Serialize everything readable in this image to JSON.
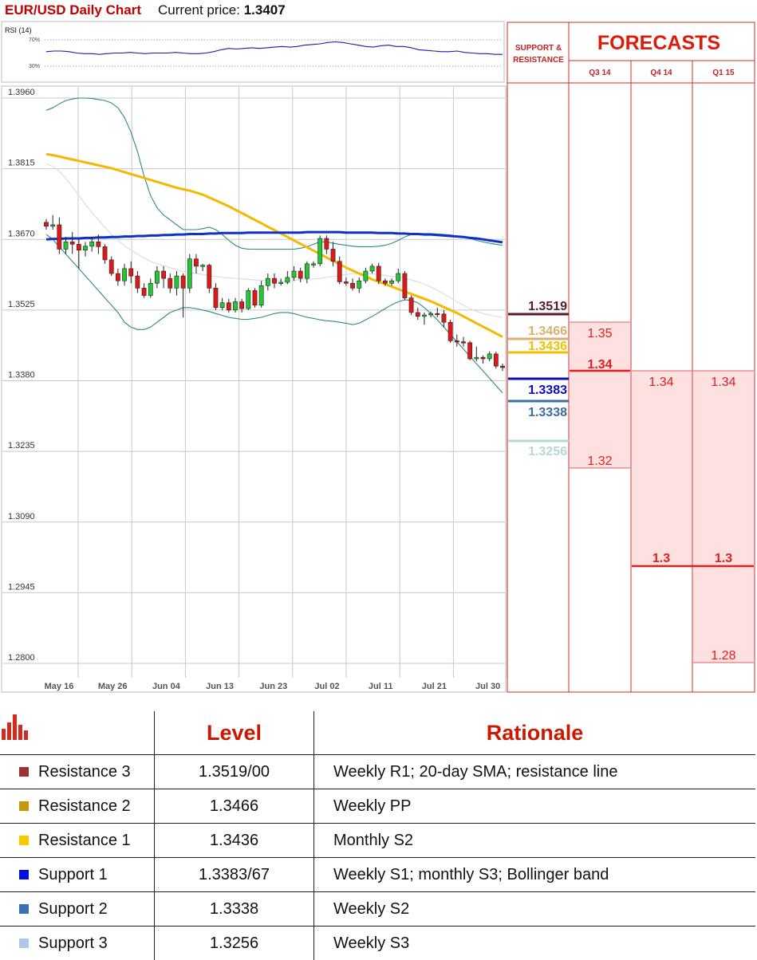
{
  "header": {
    "title": "EUR/USD Daily Chart",
    "price_label": "Current price:",
    "price": "1.3407"
  },
  "rsi": {
    "label": "RSI (14)",
    "levels": [
      "70%",
      "30%"
    ],
    "values": [
      52,
      53,
      53,
      52,
      50,
      49,
      49,
      48,
      49,
      50,
      50,
      51,
      50,
      49,
      50,
      50,
      50,
      51,
      50,
      49,
      49,
      50,
      52,
      55,
      57,
      56,
      57,
      58,
      57,
      58,
      59,
      60,
      59,
      60,
      62,
      63,
      64,
      66,
      67,
      66,
      64,
      62,
      60,
      59,
      61,
      62,
      60,
      60,
      58,
      55,
      54,
      53,
      52,
      52,
      53,
      51,
      50,
      49,
      49,
      48,
      48
    ]
  },
  "chart_data": {
    "type": "candlestick",
    "title": "EUR/USD Daily Chart",
    "y_ticks": [
      "1.3960",
      "1.3815",
      "1.3670",
      "1.3525",
      "1.3380",
      "1.3235",
      "1.3090",
      "1.2945",
      "1.2800"
    ],
    "x_ticks": [
      "May 16",
      "May 26",
      "Jun 04",
      "Jun 13",
      "Jun 23",
      "Jul 02",
      "Jul 11",
      "Jul 21",
      "Jul 30"
    ],
    "ylim": [
      1.28,
      1.396
    ],
    "grid": true,
    "candles": [
      [
        1.3705,
        1.3697,
        1.3712,
        1.369
      ],
      [
        1.3697,
        1.37,
        1.372,
        1.369
      ],
      [
        1.37,
        1.365,
        1.3715,
        1.364
      ],
      [
        1.365,
        1.3665,
        1.3675,
        1.364
      ],
      [
        1.3665,
        1.366,
        1.3685,
        1.364
      ],
      [
        1.366,
        1.3648,
        1.367,
        1.361
      ],
      [
        1.3648,
        1.3656,
        1.3665,
        1.3635
      ],
      [
        1.3656,
        1.3665,
        1.3675,
        1.3645
      ],
      [
        1.3665,
        1.3655,
        1.368,
        1.364
      ],
      [
        1.3655,
        1.3628,
        1.366,
        1.362
      ],
      [
        1.3628,
        1.36,
        1.3635,
        1.3595
      ],
      [
        1.36,
        1.3585,
        1.361,
        1.3575
      ],
      [
        1.3585,
        1.361,
        1.362,
        1.3575
      ],
      [
        1.361,
        1.3595,
        1.3625,
        1.358
      ],
      [
        1.3595,
        1.357,
        1.3605,
        1.356
      ],
      [
        1.357,
        1.3555,
        1.358,
        1.355
      ],
      [
        1.3555,
        1.358,
        1.359,
        1.355
      ],
      [
        1.358,
        1.3605,
        1.3615,
        1.357
      ],
      [
        1.3605,
        1.359,
        1.3615,
        1.357
      ],
      [
        1.359,
        1.357,
        1.36,
        1.356
      ],
      [
        1.357,
        1.3595,
        1.3605,
        1.3555
      ],
      [
        1.3595,
        1.357,
        1.36,
        1.351
      ],
      [
        1.357,
        1.363,
        1.364,
        1.356
      ],
      [
        1.363,
        1.3615,
        1.364,
        1.36
      ],
      [
        1.3615,
        1.3617,
        1.362,
        1.3605
      ],
      [
        1.3617,
        1.357,
        1.362,
        1.356
      ],
      [
        1.357,
        1.353,
        1.358,
        1.3525
      ],
      [
        1.353,
        1.354,
        1.355,
        1.3525
      ],
      [
        1.354,
        1.3525,
        1.3548,
        1.352
      ],
      [
        1.3525,
        1.3542,
        1.355,
        1.352
      ],
      [
        1.3542,
        1.3528,
        1.3548,
        1.352
      ],
      [
        1.3528,
        1.3565,
        1.357,
        1.3525
      ],
      [
        1.3565,
        1.3535,
        1.357,
        1.353
      ],
      [
        1.3535,
        1.3575,
        1.3585,
        1.353
      ],
      [
        1.3575,
        1.359,
        1.36,
        1.3565
      ],
      [
        1.359,
        1.358,
        1.36,
        1.357
      ],
      [
        1.358,
        1.3582,
        1.359,
        1.3575
      ],
      [
        1.3582,
        1.3592,
        1.3605,
        1.3578
      ],
      [
        1.3592,
        1.3605,
        1.3615,
        1.3585
      ],
      [
        1.3605,
        1.359,
        1.3612,
        1.3582
      ],
      [
        1.359,
        1.362,
        1.3625,
        1.358
      ],
      [
        1.362,
        1.362,
        1.3625,
        1.3612
      ],
      [
        1.362,
        1.3672,
        1.3678,
        1.3615
      ],
      [
        1.3672,
        1.365,
        1.3678,
        1.364
      ],
      [
        1.365,
        1.3625,
        1.3665,
        1.3615
      ],
      [
        1.3625,
        1.3583,
        1.3635,
        1.3578
      ],
      [
        1.3583,
        1.358,
        1.3592,
        1.3575
      ],
      [
        1.358,
        1.357,
        1.359,
        1.3565
      ],
      [
        1.357,
        1.3585,
        1.3592,
        1.356
      ],
      [
        1.3585,
        1.3605,
        1.3612,
        1.358
      ],
      [
        1.3605,
        1.3615,
        1.362,
        1.36
      ],
      [
        1.3615,
        1.3585,
        1.3622,
        1.3578
      ],
      [
        1.3585,
        1.358,
        1.359,
        1.3575
      ],
      [
        1.358,
        1.3585,
        1.359,
        1.3575
      ],
      [
        1.3585,
        1.36,
        1.361,
        1.358
      ],
      [
        1.36,
        1.355,
        1.3605,
        1.3545
      ],
      [
        1.355,
        1.352,
        1.3555,
        1.3515
      ],
      [
        1.352,
        1.3512,
        1.353,
        1.3505
      ],
      [
        1.3512,
        1.3515,
        1.352,
        1.3495
      ],
      [
        1.3515,
        1.3518,
        1.3522,
        1.351
      ],
      [
        1.3518,
        1.3517,
        1.353,
        1.351
      ],
      [
        1.3517,
        1.35,
        1.3525,
        1.349
      ],
      [
        1.35,
        1.3462,
        1.3505,
        1.3458
      ],
      [
        1.3462,
        1.346,
        1.3475,
        1.345
      ],
      [
        1.346,
        1.3458,
        1.347,
        1.345
      ],
      [
        1.3458,
        1.3425,
        1.3462,
        1.3422
      ],
      [
        1.3425,
        1.3428,
        1.345,
        1.342
      ],
      [
        1.3428,
        1.3425,
        1.3432,
        1.3415
      ],
      [
        1.3425,
        1.3435,
        1.344,
        1.342
      ],
      [
        1.3435,
        1.341,
        1.344,
        1.3405
      ],
      [
        1.341,
        1.3407,
        1.3415,
        1.34
      ]
    ],
    "series": [
      {
        "values": [
          1.3845,
          1.3843,
          1.384,
          1.3837,
          1.3834,
          1.3831,
          1.3828,
          1.3825,
          1.3822,
          1.3819,
          1.3816,
          1.3812,
          1.3808,
          1.3804,
          1.38,
          1.3796,
          1.3792,
          1.3788,
          1.3784,
          1.378,
          1.3776,
          1.3773,
          1.377,
          1.3766,
          1.3762,
          1.3756,
          1.375,
          1.3744,
          1.3738,
          1.3731,
          1.3724,
          1.3717,
          1.371,
          1.3703,
          1.3696,
          1.3689,
          1.3682,
          1.3675,
          1.3668,
          1.3661,
          1.3654,
          1.3647,
          1.364,
          1.3633,
          1.3626,
          1.3619,
          1.3612,
          1.3606,
          1.36,
          1.3594,
          1.3588,
          1.3583,
          1.3578,
          1.3573,
          1.3568,
          1.3563,
          1.3558,
          1.3553,
          1.3548,
          1.3543,
          1.3537,
          1.3531,
          1.3525,
          1.3519,
          1.3512,
          1.3505,
          1.3498,
          1.3491,
          1.3484,
          1.3477,
          1.347
        ]
      },
      {
        "values": [
          1.367,
          1.3671,
          1.3671,
          1.3672,
          1.3672,
          1.3672,
          1.3673,
          1.3673,
          1.3674,
          1.3674,
          1.3675,
          1.3675,
          1.3676,
          1.3676,
          1.3677,
          1.3677,
          1.3678,
          1.3678,
          1.3679,
          1.3679,
          1.368,
          1.368,
          1.3681,
          1.3681,
          1.3681,
          1.3682,
          1.3682,
          1.3683,
          1.3683,
          1.3683,
          1.3683,
          1.3684,
          1.3684,
          1.3684,
          1.3684,
          1.3684,
          1.3684,
          1.3684,
          1.3684,
          1.3684,
          1.3685,
          1.3685,
          1.3685,
          1.3685,
          1.3685,
          1.3685,
          1.3684,
          1.3684,
          1.3684,
          1.3684,
          1.3684,
          1.3683,
          1.3683,
          1.3683,
          1.3682,
          1.3682,
          1.3681,
          1.3681,
          1.368,
          1.368,
          1.3679,
          1.3678,
          1.3677,
          1.3676,
          1.3675,
          1.3673,
          1.3672,
          1.367,
          1.3668,
          1.3666,
          1.3664
        ]
      }
    ],
    "bollinger_upper": [
      1.3935,
      1.394,
      1.3948,
      1.3955,
      1.3958,
      1.396,
      1.396,
      1.3959,
      1.3957,
      1.3955,
      1.395,
      1.394,
      1.392,
      1.389,
      1.385,
      1.38,
      1.376,
      1.3735,
      1.372,
      1.371,
      1.37,
      1.369,
      1.369,
      1.369,
      1.3692,
      1.3695,
      1.369,
      1.368,
      1.3668,
      1.3658,
      1.3652,
      1.365,
      1.365,
      1.365,
      1.365,
      1.365,
      1.365,
      1.365,
      1.365,
      1.3652,
      1.3655,
      1.366,
      1.3665,
      1.3665,
      1.3662,
      1.366,
      1.3658,
      1.3656,
      1.3655,
      1.3655,
      1.3655,
      1.3656,
      1.3658,
      1.3662,
      1.3668,
      1.3675,
      1.368,
      1.3682,
      1.3682,
      1.3682,
      1.3681,
      1.368,
      1.3679,
      1.3677,
      1.3675,
      1.3672,
      1.3668,
      1.3665,
      1.3662,
      1.366,
      1.3658
    ],
    "bollinger_lower": [
      1.368,
      1.367,
      1.3655,
      1.364,
      1.3625,
      1.361,
      1.3595,
      1.358,
      1.3565,
      1.355,
      1.3535,
      1.352,
      1.35,
      1.349,
      1.3485,
      1.3485,
      1.349,
      1.35,
      1.351,
      1.352,
      1.3525,
      1.353,
      1.353,
      1.3528,
      1.3525,
      1.3522,
      1.3518,
      1.3514,
      1.351,
      1.3508,
      1.3506,
      1.3506,
      1.3508,
      1.351,
      1.3514,
      1.3518,
      1.352,
      1.352,
      1.3518,
      1.3514,
      1.351,
      1.3508,
      1.3505,
      1.3503,
      1.3502,
      1.35,
      1.3498,
      1.3495,
      1.3498,
      1.3505,
      1.3512,
      1.352,
      1.3528,
      1.3536,
      1.3542,
      1.3546,
      1.3545,
      1.354,
      1.353,
      1.3518,
      1.3505,
      1.349,
      1.3475,
      1.346,
      1.3445,
      1.343,
      1.3415,
      1.34,
      1.3385,
      1.337,
      1.3355
    ],
    "sma_faint": [
      1.3825,
      1.382,
      1.381,
      1.3795,
      1.3778,
      1.376,
      1.3742,
      1.3725,
      1.371,
      1.3695,
      1.368,
      1.3668,
      1.3657,
      1.3648,
      1.364,
      1.3632,
      1.3625,
      1.362,
      1.3616,
      1.3612,
      1.3608,
      1.3604,
      1.3602,
      1.36,
      1.3598,
      1.3596,
      1.3594,
      1.3592,
      1.3591,
      1.359,
      1.3589,
      1.3588,
      1.3587,
      1.3586,
      1.3586,
      1.3585,
      1.3585,
      1.3585,
      1.3586,
      1.3587,
      1.3588,
      1.3589,
      1.359,
      1.3592,
      1.3594,
      1.3596,
      1.3598,
      1.36,
      1.36,
      1.36,
      1.3599,
      1.3598,
      1.3596,
      1.3594,
      1.3592,
      1.359,
      1.3587,
      1.3583,
      1.3578,
      1.3572,
      1.3566,
      1.3558,
      1.355,
      1.3542,
      1.3535,
      1.3528,
      1.3522,
      1.3518,
      1.3515,
      1.3512,
      1.351
    ]
  },
  "support_resistance": {
    "header": [
      "SUPPORT &",
      "RESISTANCE"
    ],
    "levels": [
      {
        "value": "1.3519",
        "color": "#5a1a2e"
      },
      {
        "value": "1.3466",
        "color": "#d8b070"
      },
      {
        "value": "1.3436",
        "color": "#f0c000"
      },
      {
        "value": "1.3383",
        "color": "#0a10c0"
      },
      {
        "value": "1.3338",
        "color": "#3a6e9e"
      },
      {
        "value": "1.3256",
        "color": "#b8d8d8"
      }
    ]
  },
  "forecasts": {
    "title": "FORECASTS",
    "columns": [
      {
        "label": "Q3 14",
        "high": "1.35",
        "mid": "1.34",
        "low": "1.32"
      },
      {
        "label": "Q4 14",
        "high": "1.34",
        "mid": "1.3"
      },
      {
        "label": "Q1 15",
        "high": "1.34",
        "mid": "1.3",
        "low": "1.28"
      }
    ]
  },
  "levels_table": {
    "headers": [
      "Level",
      "Rationale"
    ],
    "rows": [
      {
        "name": "Resistance 3",
        "level": "1.3519/00",
        "rationale": "Weekly R1; 20-day SMA; resistance line",
        "color": "#9b3030"
      },
      {
        "name": "Resistance 2",
        "level": "1.3466",
        "rationale": "Weekly PP",
        "color": "#c8960a"
      },
      {
        "name": "Resistance 1",
        "level": "1.3436",
        "rationale": "Monthly S2",
        "color": "#f8c800"
      },
      {
        "name": "Support 1",
        "level": "1.3383/67",
        "rationale": "Weekly S1; monthly S3; Bollinger band",
        "color": "#0010e0"
      },
      {
        "name": "Support 2",
        "level": "1.3338",
        "rationale": "Weekly S2",
        "color": "#3a70b8"
      },
      {
        "name": "Support 3",
        "level": "1.3256",
        "rationale": "Weekly S3",
        "color": "#b0c8e8"
      }
    ]
  }
}
